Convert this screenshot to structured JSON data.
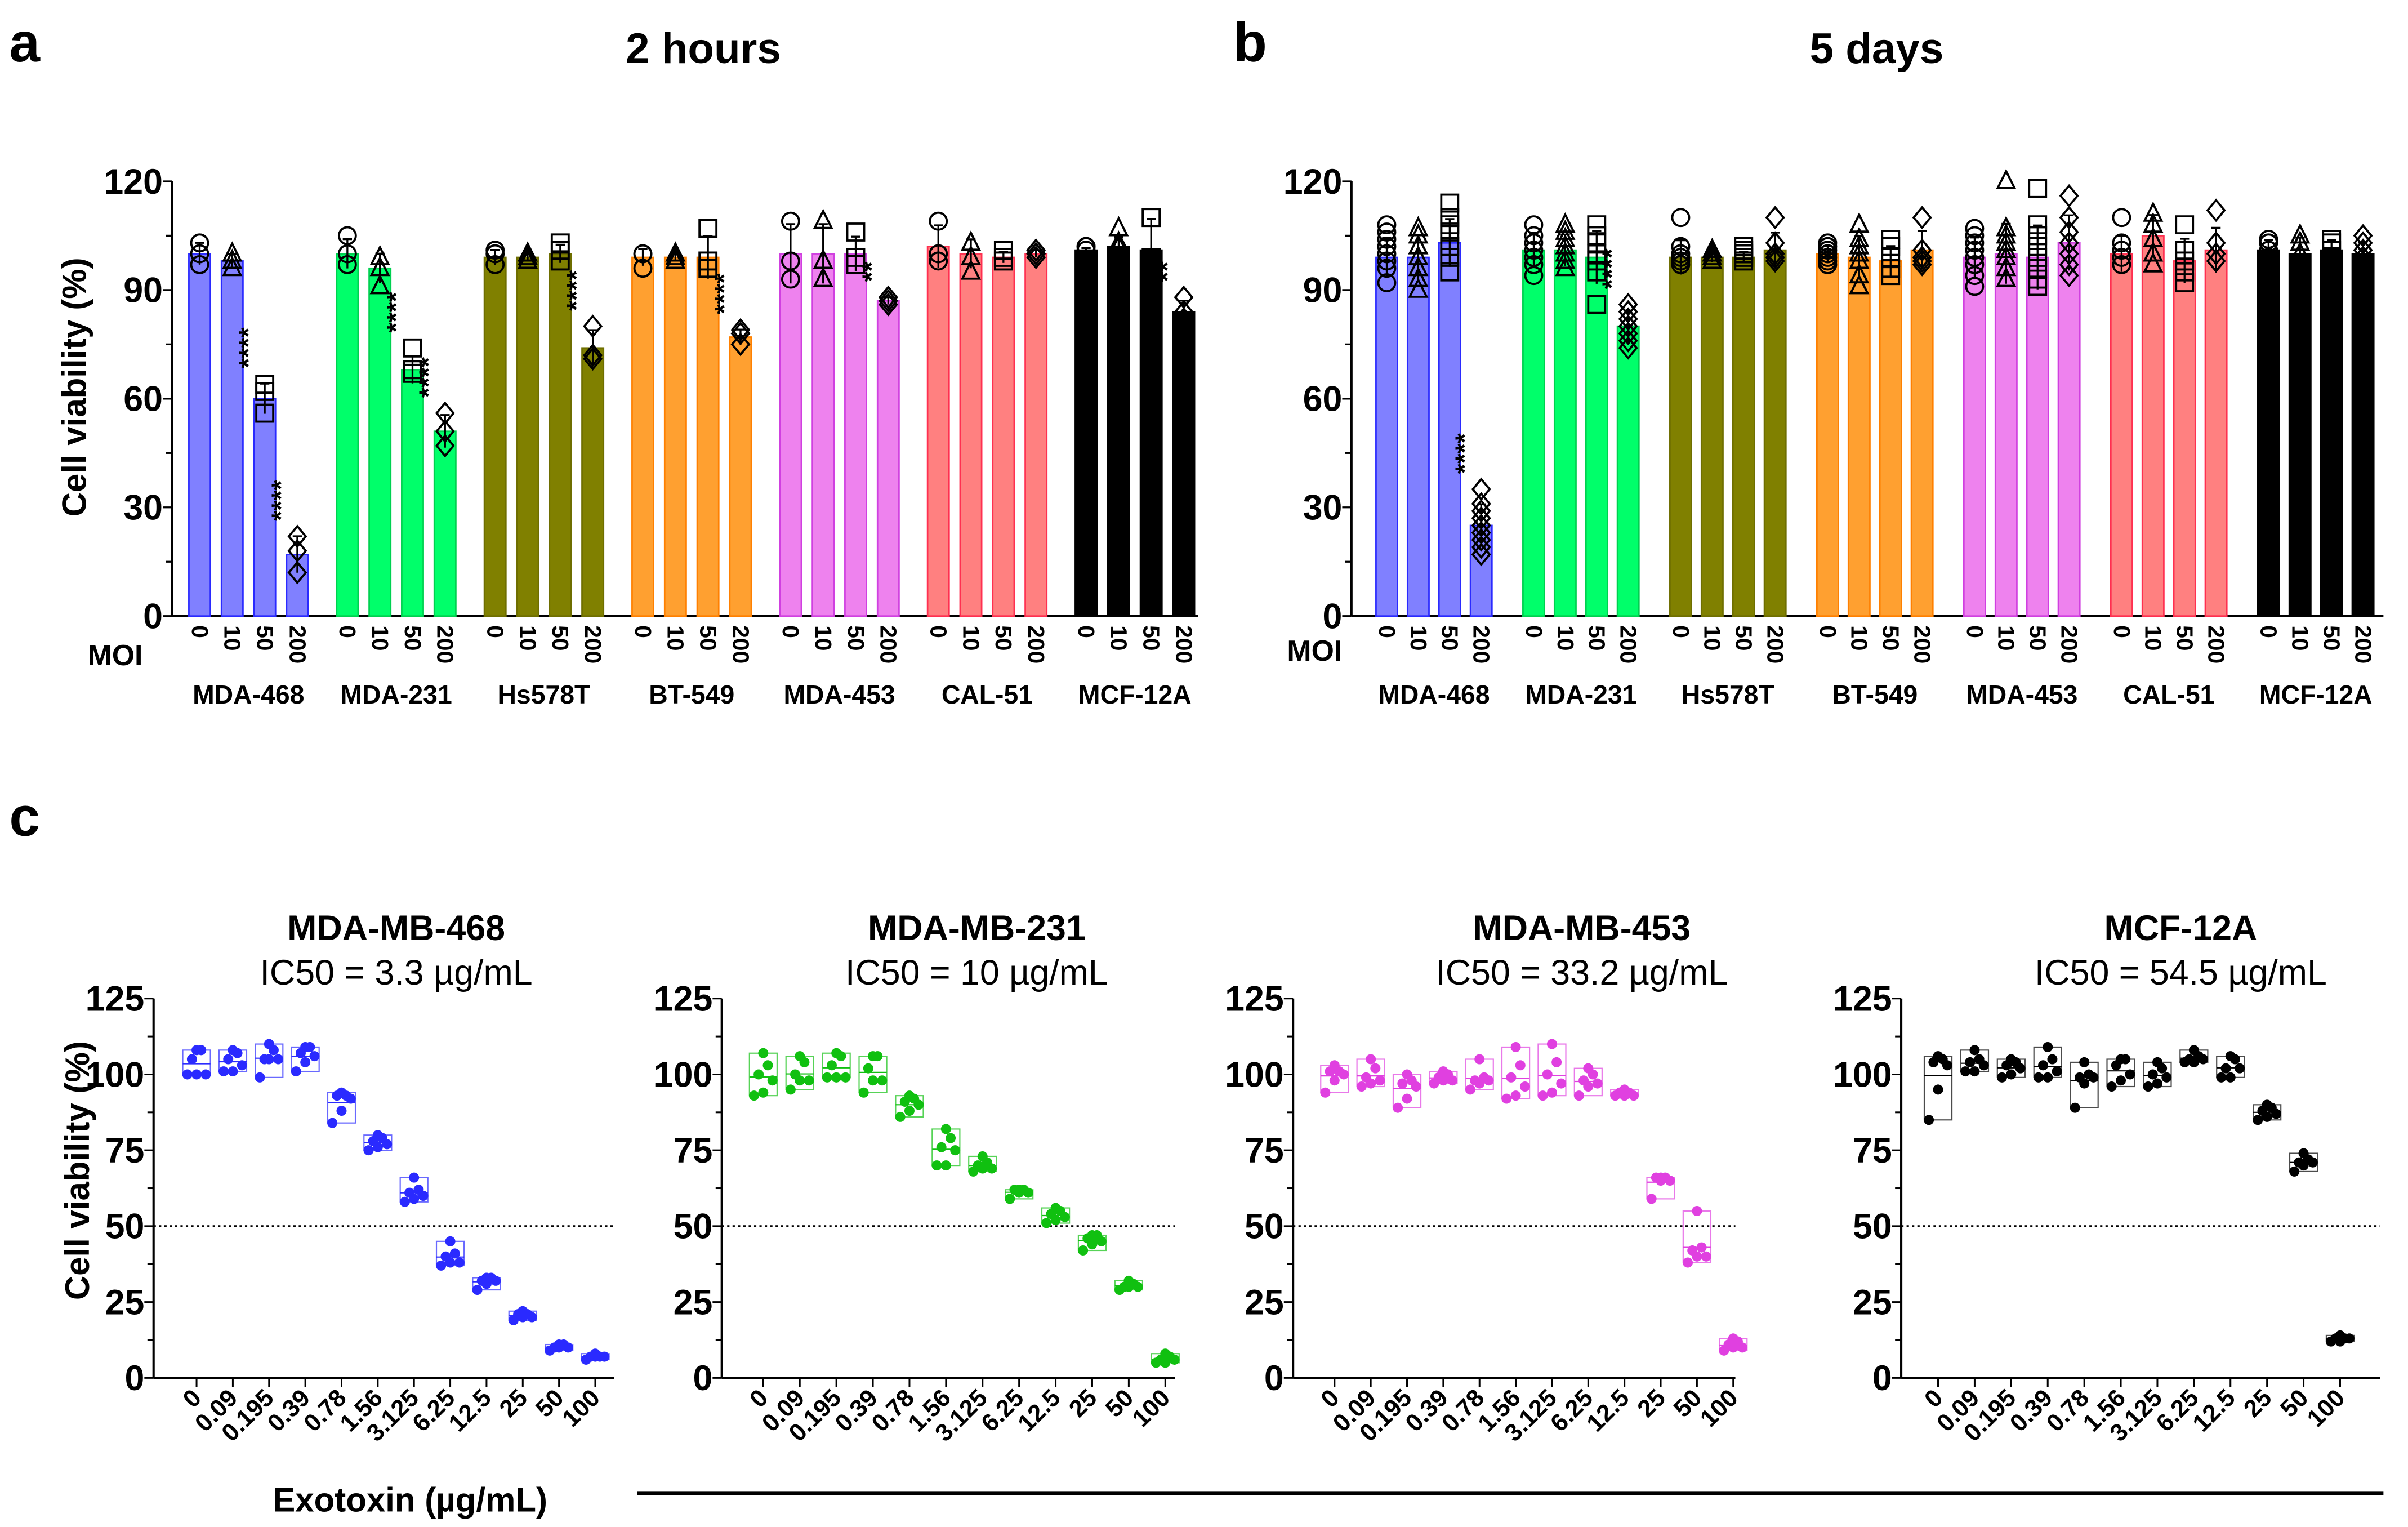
{
  "panel_labels": {
    "a": "a",
    "b": "b",
    "c": "c"
  },
  "colors": {
    "MDA-468": {
      "fill": "#8080ff",
      "stroke": "#2a2aff"
    },
    "MDA-231": {
      "fill": "#00ff6a",
      "stroke": "#00d050"
    },
    "Hs578T": {
      "fill": "#808000",
      "stroke": "#6e6e00"
    },
    "BT-549": {
      "fill": "#ffa030",
      "stroke": "#ff8000"
    },
    "MDA-453": {
      "fill": "#ee82ee",
      "stroke": "#d040e0"
    },
    "CAL-51": {
      "fill": "#ff8080",
      "stroke": "#ff3050"
    },
    "MCF-12A": {
      "fill": "#000000",
      "stroke": "#000000"
    },
    "c_blue": "#2a2aff",
    "c_green": "#10c010",
    "c_magenta": "#e040e0",
    "c_black": "#000000"
  },
  "chart_data": [
    {
      "id": "a",
      "type": "bar",
      "title": "2 hours",
      "ylabel": "Cell viability (%)",
      "xlabel": "MOI",
      "ylim": [
        0,
        120
      ],
      "yticks": [
        0,
        30,
        60,
        90,
        120
      ],
      "moi": [
        "0",
        "10",
        "50",
        "200"
      ],
      "markers": [
        "circle",
        "triangle",
        "square",
        "diamond"
      ],
      "groups": [
        {
          "name": "MDA-468",
          "means": [
            100,
            98,
            60,
            17
          ],
          "points": [
            [
              97,
              100,
              103
            ],
            [
              96,
              98,
              100
            ],
            [
              56,
              62,
              64
            ],
            [
              12,
              18,
              22
            ]
          ],
          "sig": [
            "",
            "",
            "****",
            "****"
          ]
        },
        {
          "name": "MDA-231",
          "means": [
            100,
            96,
            68,
            51
          ],
          "points": [
            [
              97,
              100,
              105
            ],
            [
              91,
              96,
              99
            ],
            [
              67,
              68,
              74
            ],
            [
              47,
              51,
              56
            ]
          ],
          "sig": [
            "",
            "",
            "****",
            "****"
          ]
        },
        {
          "name": "Hs578T",
          "means": [
            99,
            99,
            100,
            74
          ],
          "points": [
            [
              97,
              100,
              101
            ],
            [
              98,
              99,
              100
            ],
            [
              98,
              101,
              103
            ],
            [
              71,
              72,
              80
            ]
          ],
          "sig": [
            "",
            "",
            "",
            "****"
          ]
        },
        {
          "name": "BT-549",
          "means": [
            99,
            99,
            99,
            77
          ],
          "points": [
            [
              96,
              100,
              100
            ],
            [
              98,
              99,
              100
            ],
            [
              96,
              98,
              107
            ],
            [
              75,
              78,
              79
            ]
          ],
          "sig": [
            "",
            "",
            "",
            "****"
          ]
        },
        {
          "name": "MDA-453",
          "means": [
            100,
            100,
            100,
            87
          ],
          "points": [
            [
              93,
              98,
              109
            ],
            [
              93,
              98,
              109
            ],
            [
              97,
              99,
              106
            ],
            [
              86,
              87,
              88
            ]
          ],
          "sig": [
            "",
            "",
            "",
            "**"
          ]
        },
        {
          "name": "CAL-51",
          "means": [
            102,
            100,
            99,
            100
          ],
          "points": [
            [
              98,
              100,
              109
            ],
            [
              95,
              99,
              103
            ],
            [
              98,
              99,
              101
            ],
            [
              99,
              100,
              101
            ]
          ],
          "sig": [
            "",
            "",
            "",
            ""
          ]
        },
        {
          "name": "MCF-12A",
          "means": [
            101,
            102,
            101,
            84
          ],
          "points": [
            [
              101,
              102,
              102
            ],
            [
              102,
              103,
              107
            ],
            [
              93,
              99,
              110
            ],
            [
              82,
              84,
              88
            ]
          ],
          "sig": [
            "",
            "",
            "",
            "**"
          ]
        }
      ]
    },
    {
      "id": "b",
      "type": "bar",
      "title": "5 days",
      "ylabel": "",
      "xlabel": "MOI",
      "ylim": [
        0,
        120
      ],
      "yticks": [
        0,
        30,
        60,
        90,
        120
      ],
      "moi": [
        "0",
        "10",
        "50",
        "200"
      ],
      "markers": [
        "circle",
        "triangle",
        "square",
        "diamond"
      ],
      "groups": [
        {
          "name": "MDA-468",
          "means": [
            99,
            99,
            103,
            25
          ],
          "points": [
            [
              92,
              96,
              98,
              100,
              102,
              104,
              106,
              108
            ],
            [
              90,
              93,
              96,
              99,
              102,
              105,
              107
            ],
            [
              95,
              99,
              102,
              106,
              108,
              110,
              114
            ],
            [
              17,
              19,
              21,
              23,
              25,
              27,
              29,
              31,
              35
            ]
          ],
          "sig": [
            "",
            "",
            "",
            "****"
          ]
        },
        {
          "name": "MDA-231",
          "means": [
            101,
            101,
            99,
            80
          ],
          "points": [
            [
              94,
              97,
              99,
              101,
              103,
              105,
              108
            ],
            [
              96,
              98,
              100,
              102,
              104,
              106,
              108
            ],
            [
              86,
              95,
              98,
              100,
              103,
              105,
              108
            ],
            [
              74,
              76,
              78,
              80,
              82,
              84,
              86
            ]
          ],
          "sig": [
            "",
            "",
            "",
            "****"
          ]
        },
        {
          "name": "Hs578T",
          "means": [
            99,
            99,
            99,
            101
          ],
          "points": [
            [
              97,
              98,
              99,
              100,
              102,
              110
            ],
            [
              98,
              99,
              100,
              101
            ],
            [
              98,
              99,
              100,
              101,
              102
            ],
            [
              98,
              99,
              100,
              103,
              110
            ]
          ],
          "sig": [
            "",
            "",
            "",
            ""
          ]
        },
        {
          "name": "BT-549",
          "means": [
            100,
            99,
            98,
            101
          ],
          "points": [
            [
              97,
              98,
              99,
              100,
              101,
              102,
              103
            ],
            [
              91,
              94,
              98,
              100,
              102,
              104,
              108
            ],
            [
              94,
              96,
              99,
              102,
              104
            ],
            [
              97,
              98,
              99,
              101,
              110
            ]
          ],
          "sig": [
            "",
            "",
            "",
            ""
          ]
        },
        {
          "name": "MDA-453",
          "means": [
            99,
            100,
            99,
            103
          ],
          "points": [
            [
              91,
              94,
              97,
              99,
              101,
              103,
              105,
              107
            ],
            [
              93,
              96,
              99,
              101,
              103,
              105,
              107,
              120
            ],
            [
              91,
              93,
              96,
              99,
              102,
              105,
              108,
              118
            ],
            [
              94,
              97,
              100,
              103,
              106,
              110,
              116
            ]
          ],
          "sig": [
            "",
            "",
            "",
            ""
          ]
        },
        {
          "name": "CAL-51",
          "means": [
            100,
            105,
            98,
            101
          ],
          "points": [
            [
              97,
              99,
              101,
              103,
              110
            ],
            [
              97,
              100,
              104,
              108,
              111
            ],
            [
              92,
              95,
              98,
              101,
              108
            ],
            [
              98,
              100,
              103,
              112
            ]
          ],
          "sig": [
            "",
            "",
            "",
            ""
          ]
        },
        {
          "name": "MCF-12A",
          "means": [
            101,
            100,
            101,
            100
          ],
          "points": [
            [
              97,
              99,
              101,
              103,
              104
            ],
            [
              94,
              97,
              100,
              103,
              105
            ],
            [
              97,
              99,
              101,
              103,
              104
            ],
            [
              97,
              99,
              101,
              103,
              105
            ]
          ],
          "sig": [
            "",
            "",
            "",
            ""
          ]
        }
      ]
    },
    {
      "id": "c",
      "type": "scatter",
      "ylabel": "Cell viability (%)",
      "xlabel": "Exotoxin (µg/mL)",
      "ylim": [
        0,
        125
      ],
      "yticks": [
        0,
        25,
        50,
        75,
        100,
        125
      ],
      "reference_line": 50,
      "categories": [
        "0",
        "0.09",
        "0.195",
        "0.39",
        "0.78",
        "1.56",
        "3.125",
        "6.25",
        "12.5",
        "25",
        "50",
        "100"
      ],
      "panels": [
        {
          "title": "MDA-MB-468",
          "ic50": "IC50 = 3.3 µg/mL",
          "color": "#2a2aff",
          "points": [
            [
              100,
              100,
              100,
              105,
              108,
              108
            ],
            [
              101,
              101,
              103,
              105,
              107,
              108
            ],
            [
              99,
              105,
              105,
              105,
              108,
              110
            ],
            [
              101,
              104,
              106,
              107,
              109,
              109
            ],
            [
              84,
              88,
              92,
              93,
              93,
              94
            ],
            [
              75,
              76,
              77,
              78,
              79,
              80
            ],
            [
              58,
              59,
              60,
              61,
              62,
              66
            ],
            [
              37,
              38,
              38,
              40,
              41,
              45
            ],
            [
              29,
              31,
              32,
              32,
              33,
              33
            ],
            [
              19,
              20,
              20,
              21,
              21,
              22
            ],
            [
              9,
              10,
              10,
              10,
              11,
              11
            ],
            [
              6,
              7,
              7,
              7,
              7,
              8
            ]
          ]
        },
        {
          "title": "MDA-MB-231",
          "ic50": "IC50 = 10 µg/mL",
          "color": "#10c010",
          "points": [
            [
              93,
              94,
              98,
              100,
              103,
              107
            ],
            [
              95,
              98,
              98,
              100,
              104,
              106
            ],
            [
              99,
              99,
              99,
              103,
              106,
              107
            ],
            [
              94,
              98,
              98,
              102,
              106,
              106
            ],
            [
              86,
              88,
              90,
              91,
              92,
              93
            ],
            [
              70,
              70,
              75,
              76,
              79,
              82
            ],
            [
              68,
              69,
              69,
              70,
              71,
              73
            ],
            [
              59,
              61,
              61,
              62,
              62,
              62
            ],
            [
              51,
              52,
              53,
              54,
              55,
              56
            ],
            [
              42,
              44,
              45,
              46,
              47,
              47
            ],
            [
              29,
              30,
              30,
              30,
              31,
              32
            ],
            [
              5,
              5,
              6,
              6,
              7,
              8
            ]
          ]
        },
        {
          "title": "MDA-MB-453",
          "ic50": "IC50 = 33.2 µg/mL",
          "color": "#e040e0",
          "points": [
            [
              94,
              98,
              100,
              101,
              101,
              103
            ],
            [
              96,
              97,
              98,
              99,
              102,
              105
            ],
            [
              89,
              92,
              96,
              97,
              98,
              100
            ],
            [
              97,
              98,
              98,
              99,
              100,
              101
            ],
            [
              95,
              97,
              98,
              98,
              99,
              105
            ],
            [
              92,
              93,
              96,
              99,
              103,
              109
            ],
            [
              93,
              94,
              97,
              100,
              104,
              110
            ],
            [
              93,
              96,
              97,
              98,
              100,
              102
            ],
            [
              93,
              93,
              93,
              94,
              94,
              95
            ],
            [
              59,
              65,
              65,
              66,
              66,
              66
            ],
            [
              38,
              40,
              40,
              42,
              43,
              55
            ],
            [
              9,
              10,
              10,
              11,
              12,
              13
            ]
          ]
        },
        {
          "title": "MCF-12A",
          "ic50": "IC50 = 54.5 µg/mL",
          "color": "#000000",
          "points": [
            [
              85,
              95,
              103,
              104,
              105,
              106
            ],
            [
              101,
              101,
              103,
              104,
              105,
              108
            ],
            [
              99,
              100,
              102,
              103,
              104,
              105
            ],
            [
              99,
              99,
              101,
              103,
              105,
              109
            ],
            [
              89,
              97,
              99,
              99,
              100,
              104
            ],
            [
              96,
              98,
              100,
              103,
              105,
              105
            ],
            [
              96,
              97,
              99,
              100,
              102,
              104
            ],
            [
              104,
              104,
              105,
              105,
              106,
              108
            ],
            [
              99,
              99,
              102,
              102,
              105,
              106
            ],
            [
              85,
              86,
              87,
              88,
              89,
              90
            ],
            [
              68,
              70,
              71,
              71,
              72,
              74
            ],
            [
              12,
              12,
              13,
              13,
              13,
              14
            ]
          ]
        }
      ]
    }
  ]
}
